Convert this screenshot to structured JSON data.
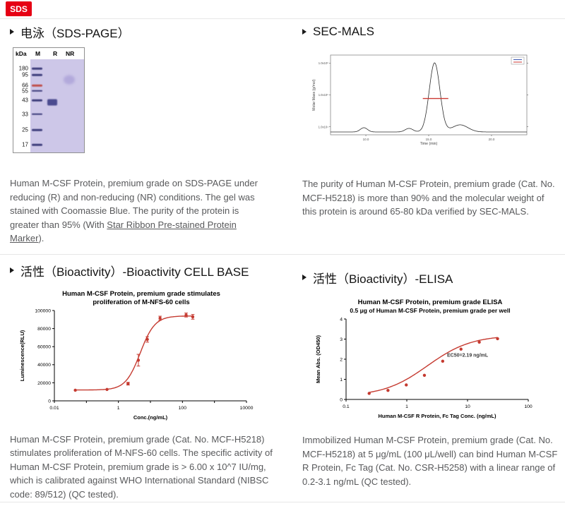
{
  "page": {
    "badge_label": "SDS"
  },
  "sections": {
    "sds_page": {
      "title": "电泳（SDS-PAGE）",
      "gel": {
        "unit_label": "kDa",
        "lanes": [
          "M",
          "R",
          "NR"
        ],
        "bg_color": "#cdc7e8",
        "band_color": "#3e3e7c",
        "red_band_color": "#c0504d",
        "sample_band_color": "#4b4b8f",
        "nr_blob_color": "#b2a9db",
        "markers": [
          {
            "label": "180",
            "y": 10
          },
          {
            "label": "95",
            "y": 17
          },
          {
            "label": "66",
            "y": 28,
            "red": true
          },
          {
            "label": "55",
            "y": 34
          },
          {
            "label": "43",
            "y": 44
          },
          {
            "label": "33",
            "y": 59
          },
          {
            "label": "25",
            "y": 76
          },
          {
            "label": "17",
            "y": 92
          }
        ],
        "sample_bands": [
          {
            "lane": "R",
            "y": 46,
            "height": 9
          },
          {
            "lane": "NR",
            "y": 22,
            "height": 13
          }
        ]
      },
      "caption_before_link": "Human M-CSF Protein, premium grade on SDS-PAGE under reducing (R) and non-reducing (NR) conditions. The gel was stained with Coomassie Blue. The purity of the protein is greater than 95% (With ",
      "caption_link": "Star Ribbon Pre-stained Protein Marker",
      "caption_after_link": ")."
    },
    "sec_mals": {
      "title": "SEC-MALS",
      "caption": "The purity of Human M-CSF Protein, premium grade (Cat. No. MCF-H5218) is more than 90% and the molecular weight of this protein is around 65-80 kDa verified by SEC-MALS."
    },
    "cell_base": {
      "title": "活性（Bioactivity）-Bioactivity CELL BASE",
      "caption": "Human M-CSF Protein, premium grade (Cat. No. MCF-H5218) stimulates proliferation of M-NFS-60 cells. The specific activity of Human M-CSF Protein, premium grade is > 6.00 x 10^7 IU/mg, which is calibrated against WHO International Standard (NIBSC code: 89/512) (QC tested)."
    },
    "elisa": {
      "title": "活性（Bioactivity）-ELISA",
      "caption": "Immobilized Human M-CSF Protein, premium grade (Cat. No. MCF-H5218) at 5 μg/mL (100 μL/well) can bind Human M-CSF R Protein, Fc Tag (Cat. No. CSR-H5258) with a linear range of 0.2-3.1 ng/mL (QC tested)."
    }
  },
  "chart_data": [
    {
      "id": "sec_mals",
      "type": "line",
      "title": "",
      "xlabel": "Time (min)",
      "ylabel": "Molar Mass (g/mol)",
      "x_ticks": [
        {
          "pos": 0.18,
          "label": "10.0"
        },
        {
          "pos": 0.5,
          "label": "15.0"
        },
        {
          "pos": 0.82,
          "label": "20.0"
        }
      ],
      "y_ticks": [
        {
          "pos": 0.9,
          "label": "1.0x10⁶"
        },
        {
          "pos": 0.5,
          "label": "1.0x10⁵"
        },
        {
          "pos": 0.1,
          "label": "1.0x10⁴"
        }
      ],
      "peaks": [
        {
          "center": 0.17,
          "height": 0.06,
          "width": 0.018
        },
        {
          "center": 0.4,
          "height": 0.05,
          "width": 0.02
        },
        {
          "center": 0.53,
          "height": 0.97,
          "width": 0.027
        },
        {
          "center": 0.66,
          "height": 0.1,
          "width": 0.04
        }
      ],
      "molar_mass_trace": {
        "x1": 0.47,
        "x2": 0.6,
        "y": 0.47,
        "color": "#cc3a33"
      },
      "line_color": "#2b2b2b",
      "legend_colors": [
        "#3a56b0",
        "#cc3a33"
      ]
    },
    {
      "id": "cell_base",
      "type": "line",
      "title": "Human M-CSF Protein, premium grade stimulates proliferation of M-NFS-60 cells",
      "title_lines": [
        "Human M-CSF Protein, premium grade stimulates",
        "proliferation of M-NFS-60 cells"
      ],
      "xlabel": "Conc.(ng/mL)",
      "ylabel": "Luminescence(RLU)",
      "x_scale": "log",
      "xlim": [
        0.01,
        10000
      ],
      "ylim": [
        0,
        100000
      ],
      "y_ticks": [
        0,
        20000,
        40000,
        60000,
        80000,
        100000
      ],
      "x_tick_labels": [
        "0.01",
        "1",
        "100",
        "10000"
      ],
      "points": {
        "x": [
          0.045,
          0.44,
          2,
          4.2,
          8,
          20,
          130,
          210
        ],
        "y": [
          11800,
          12600,
          19000,
          45000,
          68000,
          91500,
          95000,
          93000
        ],
        "err": [
          0,
          0,
          1500,
          6500,
          3000,
          2200,
          2200,
          2600
        ]
      },
      "fit": {
        "bottom": 12000,
        "top": 94000,
        "ec50": 4.8,
        "hill": 1.9
      },
      "color": "#c53a30"
    },
    {
      "id": "elisa",
      "type": "line",
      "title": "Human M-CSF Protein, premium grade ELISA",
      "title_lines": [
        "Human M-CSF Protein, premium grade ELISA"
      ],
      "subtitle": "0.5 μg of Human M-CSF Protein, premium grade per well",
      "xlabel": "Human M-CSF R Protein, Fc Tag Conc. (ng/mL)",
      "ylabel": "Mean Abs. (OD450)",
      "x_scale": "log",
      "xlim": [
        0.1,
        100
      ],
      "ylim": [
        0,
        4
      ],
      "y_ticks": [
        0,
        1,
        2,
        3,
        4
      ],
      "x_tick_labels": [
        "0.1",
        "1",
        "10",
        "100"
      ],
      "points": {
        "x": [
          0.24,
          0.49,
          0.98,
          1.95,
          3.9,
          7.8,
          15.6,
          31.2
        ],
        "y": [
          0.3,
          0.45,
          0.72,
          1.2,
          1.9,
          2.5,
          2.85,
          3.02
        ],
        "err": []
      },
      "fit": {
        "bottom": 0.15,
        "top": 3.2,
        "ec50": 2.19,
        "hill": 1.2
      },
      "annotation": {
        "text": "EC50=2.19 ng/mL",
        "x": 4.6,
        "y": 2.12
      },
      "color": "#c53a30"
    }
  ]
}
